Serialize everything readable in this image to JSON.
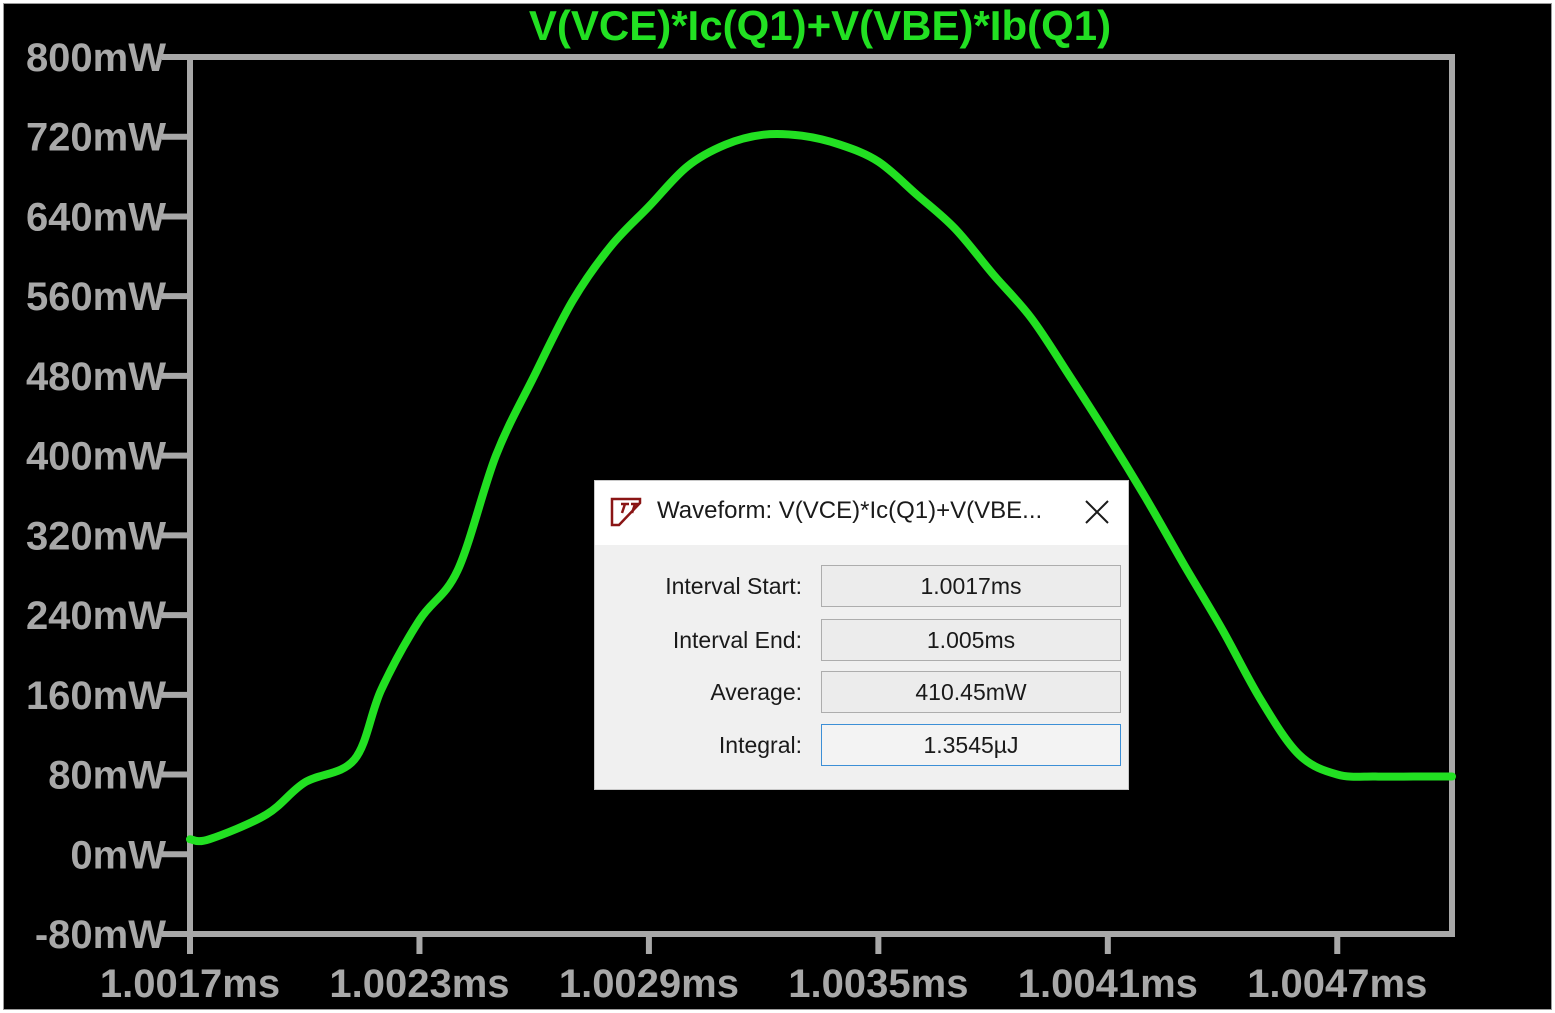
{
  "chart_data": {
    "type": "line",
    "title": "V(VCE)*Ic(Q1)+V(VBE)*Ib(Q1)",
    "xlabel": "",
    "ylabel": "",
    "x_unit": "ms",
    "y_unit": "mW",
    "xlim": [
      1.0017,
      1.005
    ],
    "ylim": [
      -80,
      800
    ],
    "x_ticks": [
      "1.0017ms",
      "1.0023ms",
      "1.0029ms",
      "1.0035ms",
      "1.0041ms",
      "1.0047ms"
    ],
    "x_tick_values": [
      1.0017,
      1.0023,
      1.0029,
      1.0035,
      1.0041,
      1.0047
    ],
    "y_ticks": [
      "800mW",
      "720mW",
      "640mW",
      "560mW",
      "480mW",
      "400mW",
      "320mW",
      "240mW",
      "160mW",
      "80mW",
      "0mW",
      "-80mW"
    ],
    "y_tick_values": [
      800,
      720,
      640,
      560,
      480,
      400,
      320,
      240,
      160,
      80,
      0,
      -80
    ],
    "grid": false,
    "colors": {
      "trace": "#22e022",
      "axes": "#a8a8a8",
      "background": "#000000"
    },
    "series": [
      {
        "color": "#22e022",
        "x": [
          1.0017,
          1.00175,
          1.0019,
          1.002,
          1.00213,
          1.0022,
          1.0023,
          1.0024,
          1.0025,
          1.0026,
          1.0027,
          1.0028,
          1.0029,
          1.003,
          1.0031,
          1.0032,
          1.0033,
          1.0034,
          1.0035,
          1.0036,
          1.0037,
          1.0038,
          1.0039,
          1.004,
          1.0041,
          1.0042,
          1.0043,
          1.0044,
          1.0045,
          1.0046,
          1.0047,
          1.0048,
          1.0049,
          1.00495,
          1.005
        ],
        "y": [
          15,
          15,
          40,
          72,
          95,
          165,
          235,
          285,
          400,
          480,
          555,
          610,
          650,
          690,
          712,
          722,
          721,
          712,
          695,
          662,
          628,
          582,
          538,
          480,
          420,
          357,
          290,
          225,
          155,
          100,
          80,
          78,
          78,
          78,
          78
        ]
      }
    ]
  },
  "dialog": {
    "title": "Waveform: V(VCE)*Ic(Q1)+V(VBE...",
    "close_label": "✕",
    "fields": [
      {
        "label": "Interval Start:",
        "value": "1.0017ms"
      },
      {
        "label": "Interval End:",
        "value": "1.005ms"
      },
      {
        "label": "Average:",
        "value": "410.45mW"
      },
      {
        "label": "Integral:",
        "value": "1.3545µJ"
      }
    ]
  }
}
